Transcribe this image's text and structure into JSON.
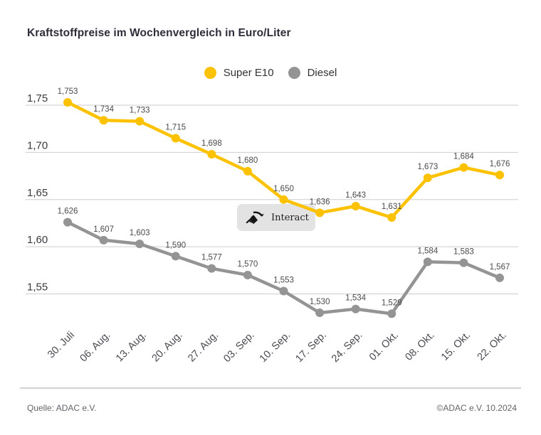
{
  "title": "Kraftstoffpreise im Wochenvergleich in Euro/Liter",
  "legend": {
    "items": [
      {
        "label": "Super E10",
        "color": "#fcc200"
      },
      {
        "label": "Diesel",
        "color": "#949494"
      }
    ]
  },
  "interact": {
    "label": "Interact",
    "icon": "pointing-hand-icon"
  },
  "footer": {
    "source": "Quelle: ADAC e.V.",
    "copyright": "©ADAC e.V. 10.2024"
  },
  "chart_data": {
    "type": "line",
    "title": "Kraftstoffpreise im Wochenvergleich in Euro/Liter",
    "unit": "Euro/Liter",
    "categories": [
      "30. Juli",
      "06. Aug.",
      "13. Aug.",
      "20. Aug.",
      "27. Aug.",
      "03. Sep.",
      "10. Sep.",
      "17. Sep.",
      "24. Sep.",
      "01. Okt.",
      "08. Okt.",
      "15. Okt.",
      "22. Okt."
    ],
    "series": [
      {
        "name": "Super E10",
        "color": "#fcc200",
        "values": [
          1.753,
          1.734,
          1.733,
          1.715,
          1.698,
          1.68,
          1.65,
          1.636,
          1.643,
          1.631,
          1.673,
          1.684,
          1.676
        ],
        "value_labels": [
          "1,753",
          "1,734",
          "1,733",
          "1,715",
          "1,698",
          "1,680",
          "1,650",
          "1,636",
          "1,643",
          "1,631",
          "1,673",
          "1,684",
          "1,676"
        ]
      },
      {
        "name": "Diesel",
        "color": "#949494",
        "values": [
          1.626,
          1.607,
          1.603,
          1.59,
          1.577,
          1.57,
          1.553,
          1.53,
          1.534,
          1.529,
          1.584,
          1.583,
          1.567
        ],
        "value_labels": [
          "1,626",
          "1,607",
          "1,603",
          "1,590",
          "1,577",
          "1,570",
          "1,553",
          "1,530",
          "1,534",
          "1,529",
          "1,584",
          "1,583",
          "1,567"
        ]
      }
    ],
    "ylim": [
      1.55,
      1.75
    ],
    "yticks": [
      1.75,
      1.7,
      1.65,
      1.6,
      1.55
    ],
    "ytick_labels": [
      "1,75",
      "1,70",
      "1,65",
      "1,60",
      "1,55"
    ],
    "grid": "horizontal",
    "legend_position": "top-center",
    "xlabel": "",
    "ylabel": ""
  }
}
